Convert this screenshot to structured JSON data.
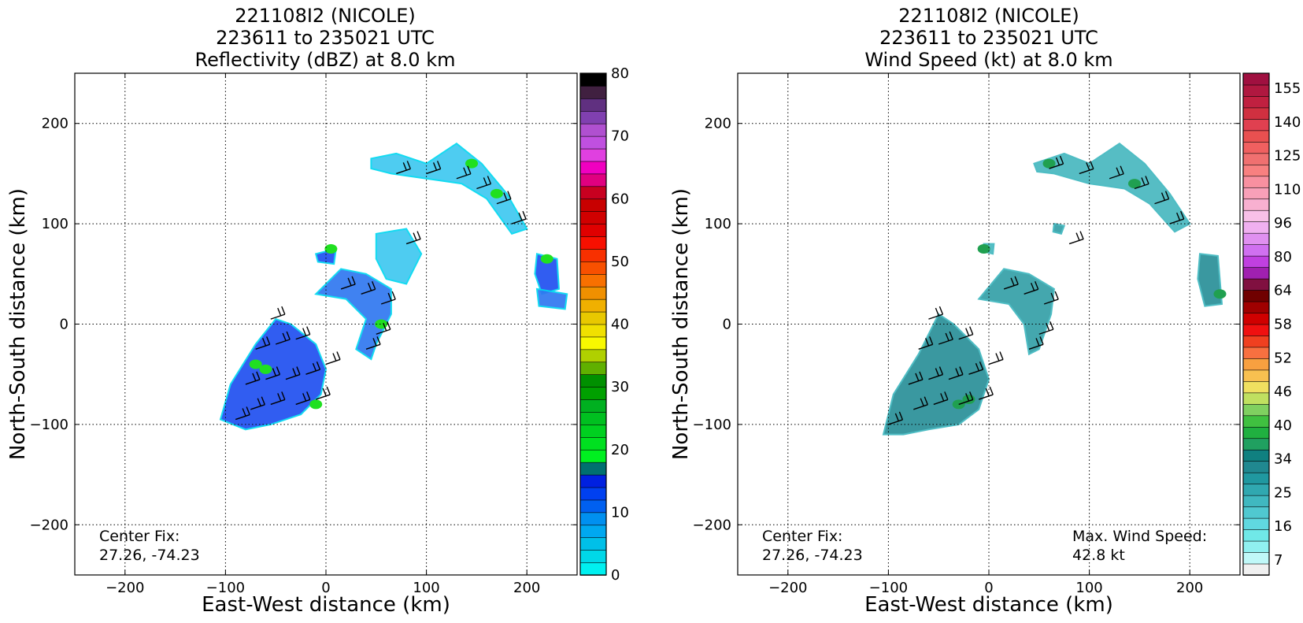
{
  "panels": [
    {
      "title": [
        "221108I2 (NICOLE)",
        "223611 to 235021 UTC",
        "Reflectivity (dBZ) at 8.0 km"
      ],
      "annotation_left": [
        "Center Fix:",
        "27.26, -74.23"
      ],
      "annotation_right": []
    },
    {
      "title": [
        "221108I2 (NICOLE)",
        "223611 to 235021 UTC",
        "Wind Speed (kt) at 8.0 km"
      ],
      "annotation_left": [
        "Center Fix:",
        "27.26, -74.23"
      ],
      "annotation_right": [
        "Max. Wind Speed:",
        "42.8 kt"
      ]
    }
  ],
  "chart_data": [
    {
      "type": "heatmap",
      "title": "221108I2 (NICOLE) 223611 to 235021 UTC Reflectivity (dBZ) at 8.0 km",
      "xlabel": "East-West distance (km)",
      "ylabel": "North-South distance (km)",
      "xlim": [
        -250,
        250
      ],
      "ylim": [
        -250,
        250
      ],
      "xticks": [
        -200,
        -100,
        0,
        100,
        200
      ],
      "yticks": [
        -200,
        -100,
        0,
        100,
        200
      ],
      "grid": true,
      "colorbar": {
        "label_ticks": [
          0,
          10,
          20,
          30,
          40,
          50,
          60,
          70,
          80
        ],
        "range": [
          0,
          80
        ],
        "colors": [
          "#00f0f0",
          "#00d8e8",
          "#00c0e8",
          "#00a8f0",
          "#0090f0",
          "#0060f0",
          "#0040f0",
          "#0020e0",
          "#007070",
          "#00f020",
          "#00e020",
          "#00d020",
          "#00c020",
          "#00b020",
          "#00a000",
          "#009000",
          "#60b000",
          "#b0d000",
          "#f8f800",
          "#f0e000",
          "#e8c800",
          "#f0b000",
          "#f09000",
          "#f87000",
          "#f85000",
          "#f83000",
          "#f81000",
          "#e00000",
          "#d00000",
          "#c80000",
          "#c80020",
          "#e00080",
          "#f000c0",
          "#e040e0",
          "#c050e0",
          "#b050d0",
          "#8040b0",
          "#603080",
          "#402040",
          "#000000"
        ]
      },
      "center_fix": "27.26, -74.23"
    },
    {
      "type": "heatmap",
      "title": "221108I2 (NICOLE) 223611 to 235021 UTC Wind Speed (kt) at 8.0 km",
      "xlabel": "East-West distance (km)",
      "ylabel": "North-South distance (km)",
      "xlim": [
        -250,
        250
      ],
      "ylim": [
        -250,
        250
      ],
      "xticks": [
        -200,
        -100,
        0,
        100,
        200
      ],
      "yticks": [
        -200,
        -100,
        0,
        100,
        200
      ],
      "grid": true,
      "colorbar": {
        "label_ticks": [
          7,
          16,
          25,
          34,
          40,
          46,
          52,
          58,
          64,
          80,
          96,
          110,
          125,
          140,
          155
        ],
        "range": [
          7,
          160
        ],
        "colors": [
          "#f0f0f0",
          "#c0f8f8",
          "#90f0f0",
          "#70e8e8",
          "#60d8e0",
          "#50c8d0",
          "#40b8c0",
          "#30a8b0",
          "#2098a0",
          "#208890",
          "#108080",
          "#20a060",
          "#20b040",
          "#40c040",
          "#80d060",
          "#c0e060",
          "#f0e060",
          "#f8c050",
          "#f8a040",
          "#f87040",
          "#f04020",
          "#f01010",
          "#d00000",
          "#a00000",
          "#700000",
          "#801040",
          "#a020b0",
          "#c040e0",
          "#d070f0",
          "#e090f0",
          "#f0b0f0",
          "#f8c0e8",
          "#f8b0d0",
          "#f8a0b8",
          "#f890a0",
          "#f88080",
          "#f07070",
          "#f06060",
          "#e85050",
          "#e04050",
          "#d03040",
          "#c02040",
          "#b01840",
          "#a01040"
        ]
      },
      "center_fix": "27.26, -74.23",
      "max_wind_speed": "42.8 kt"
    }
  ]
}
